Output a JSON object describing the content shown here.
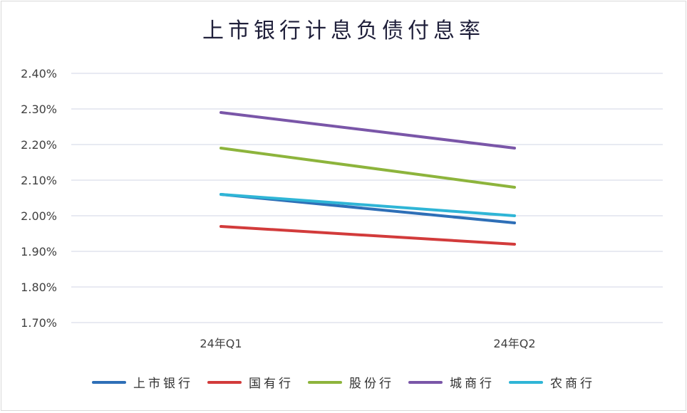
{
  "chart_data": {
    "type": "line",
    "title": "上市银行计息负债付息率",
    "xlabel": "",
    "ylabel": "",
    "categories": [
      "24年Q1",
      "24年Q2"
    ],
    "y_ticks": [
      "1.70%",
      "1.80%",
      "1.90%",
      "2.00%",
      "2.10%",
      "2.20%",
      "2.30%",
      "2.40%"
    ],
    "ylim": [
      1.7,
      2.4
    ],
    "grid": true,
    "legend_position": "bottom",
    "series": [
      {
        "name": "上市银行",
        "values": [
          2.06,
          1.98
        ],
        "color": "#2e6fb7"
      },
      {
        "name": "国有行",
        "values": [
          1.97,
          1.92
        ],
        "color": "#d23b3b"
      },
      {
        "name": "股份行",
        "values": [
          2.19,
          2.08
        ],
        "color": "#8db43c"
      },
      {
        "name": "城商行",
        "values": [
          2.29,
          2.19
        ],
        "color": "#7a56a8"
      },
      {
        "name": "农商行",
        "values": [
          2.06,
          2.0
        ],
        "color": "#2fb5d6"
      }
    ]
  }
}
